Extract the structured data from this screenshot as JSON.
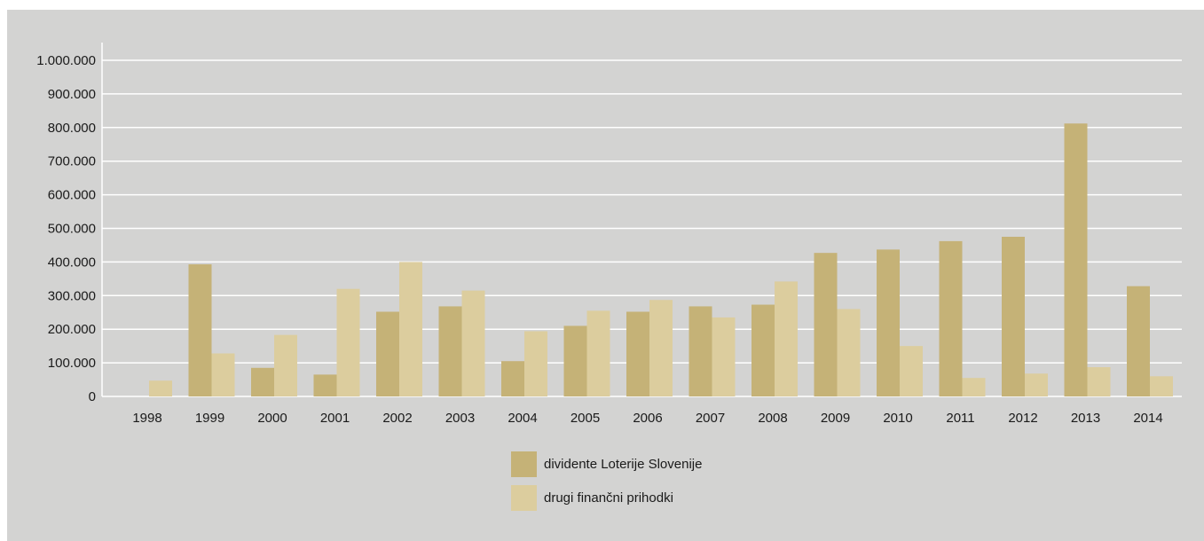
{
  "chart_data": {
    "type": "bar",
    "categories": [
      "1998",
      "1999",
      "2000",
      "2001",
      "2002",
      "2003",
      "2004",
      "2005",
      "2006",
      "2007",
      "2008",
      "2009",
      "2010",
      "2011",
      "2012",
      "2013",
      "2014"
    ],
    "series": [
      {
        "name": "dividente Loterije Slovenije",
        "color": "#c5b277",
        "values": [
          0,
          393000,
          85000,
          65000,
          252000,
          268000,
          105000,
          210000,
          252000,
          268000,
          273000,
          427000,
          437000,
          462000,
          475000,
          812000,
          328000
        ]
      },
      {
        "name": "drugi finančni prihodki",
        "color": "#dccd9e",
        "values": [
          47000,
          128000,
          183000,
          320000,
          400000,
          315000,
          194000,
          255000,
          287000,
          235000,
          342000,
          260000,
          150000,
          55000,
          68000,
          87000,
          60000
        ]
      }
    ],
    "ylim": [
      0,
      1000000
    ],
    "yticks": [
      0,
      100000,
      200000,
      300000,
      400000,
      500000,
      600000,
      700000,
      800000,
      900000,
      1000000
    ],
    "ytick_labels": [
      "0",
      "100.000",
      "200.000",
      "300.000",
      "400.000",
      "500.000",
      "600.000",
      "700.000",
      "800.000",
      "900.000",
      "1.000.000"
    ],
    "grid": true,
    "legend_position": "bottom-center",
    "background": "#d3d3d2"
  }
}
